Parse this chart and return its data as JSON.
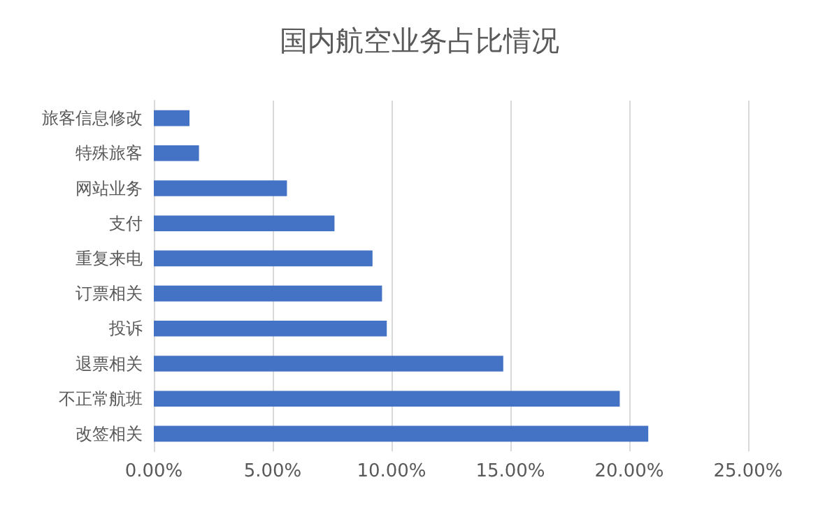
{
  "chart_data": {
    "type": "bar",
    "orientation": "horizontal",
    "title": "国内航空业务占比情况",
    "categories": [
      "旅客信息修改",
      "特殊旅客",
      "网站业务",
      "支付",
      "重复来电",
      "订票相关",
      "投诉",
      "退票相关",
      "不正常航班",
      "改签相关"
    ],
    "values": [
      1.5,
      1.9,
      5.6,
      7.6,
      9.2,
      9.6,
      9.8,
      14.7,
      19.6,
      20.8
    ],
    "color": "#4472c4",
    "xlim": [
      0,
      25
    ],
    "xticks": [
      {
        "value": 0,
        "label": "0.00%"
      },
      {
        "value": 5,
        "label": "5.00%"
      },
      {
        "value": 10,
        "label": "10.00%"
      },
      {
        "value": 15,
        "label": "15.00%"
      },
      {
        "value": 20,
        "label": "20.00%"
      },
      {
        "value": 25,
        "label": "25.00%"
      }
    ],
    "grid": "x"
  }
}
